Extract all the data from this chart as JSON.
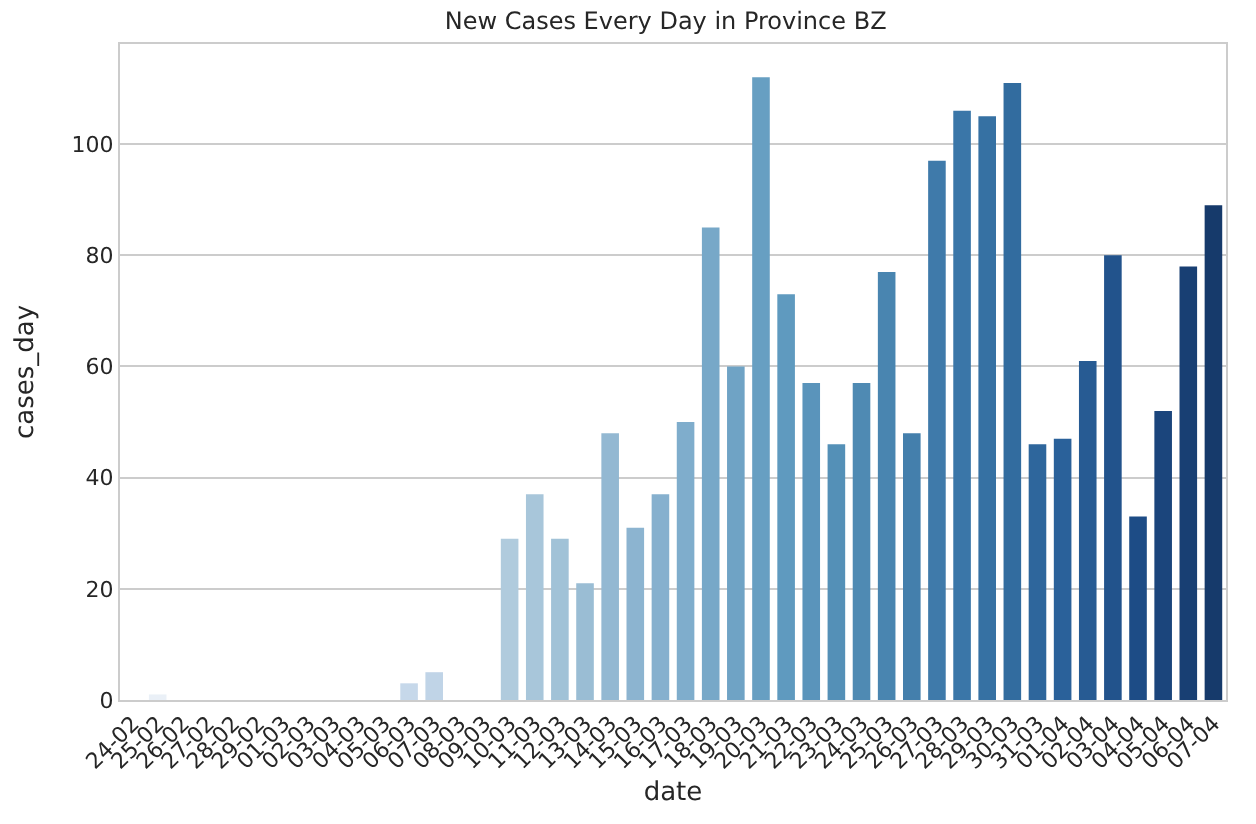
{
  "chart_data": {
    "type": "bar",
    "title": "New Cases Every Day in Province BZ",
    "xlabel": "date",
    "ylabel": "cases_day",
    "categories": [
      "24-02",
      "25-02",
      "26-02",
      "27-02",
      "28-02",
      "29-02",
      "01-03",
      "02-03",
      "03-03",
      "04-03",
      "05-03",
      "06-03",
      "07-03",
      "08-03",
      "09-03",
      "10-03",
      "11-03",
      "12-03",
      "13-03",
      "14-03",
      "15-03",
      "16-03",
      "17-03",
      "18-03",
      "19-03",
      "20-03",
      "21-03",
      "22-03",
      "23-03",
      "24-03",
      "25-03",
      "26-03",
      "27-03",
      "28-03",
      "29-03",
      "30-03",
      "31-03",
      "01-04",
      "02-04",
      "03-04",
      "04-04",
      "05-04",
      "06-04",
      "07-04"
    ],
    "values": [
      0,
      1,
      0,
      0,
      0,
      0,
      0,
      0,
      0,
      0,
      0,
      3,
      5,
      0,
      0,
      29,
      37,
      29,
      21,
      48,
      31,
      37,
      50,
      85,
      60,
      112,
      73,
      57,
      46,
      57,
      77,
      48,
      97,
      106,
      105,
      111,
      46,
      47,
      61,
      80,
      33,
      52,
      78,
      89
    ],
    "colors": [
      "#eef3f9",
      "#eaf0f7",
      "#e6edf5",
      "#e2eaf3",
      "#dee7f1",
      "#dae4ef",
      "#d6e1ee",
      "#d2deec",
      "#cedcec",
      "#cadaeb",
      "#c8d9ea",
      "#c6d8ea",
      "#c0d4e7",
      "#bad0e3",
      "#b5cde0",
      "#b0cbdd",
      "#a8c6da",
      "#a1c2d7",
      "#9abdd4",
      "#93b8d2",
      "#8cb4d0",
      "#86b0ce",
      "#7fadcc",
      "#77a8c8",
      "#6fa3c5",
      "#679fc2",
      "#5f9abf",
      "#5a94bb",
      "#5490b7",
      "#4f8ab3",
      "#4985b0",
      "#447fac",
      "#3f7aaa",
      "#3a76a8",
      "#3671a3",
      "#326c9f",
      "#2e669c",
      "#2a619a",
      "#275b93",
      "#22538c",
      "#1d4c86",
      "#1b457c",
      "#183f73",
      "#163a6b"
    ],
    "ylim": [
      0,
      118
    ],
    "yticks": [
      0,
      20,
      40,
      60,
      80,
      100
    ],
    "grid": "y"
  }
}
